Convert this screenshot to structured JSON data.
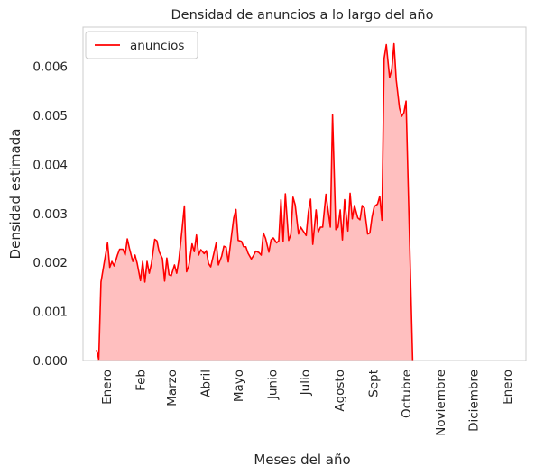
{
  "chart_data": {
    "type": "area",
    "title": "Densidad de anuncios a lo largo del año",
    "xlabel": "Meses del año",
    "ylabel": "Densidad estimada",
    "xlim": [
      0,
      366
    ],
    "ylim": [
      0,
      0.0068
    ],
    "grid": false,
    "legend": {
      "position": "top-left",
      "entries": [
        "anuncios"
      ]
    },
    "month_ticks": [
      {
        "label": "Enero",
        "x": 0
      },
      {
        "label": "Feb",
        "x": 31
      },
      {
        "label": "Marzo",
        "x": 59
      },
      {
        "label": "Abril",
        "x": 90
      },
      {
        "label": "Mayo",
        "x": 120
      },
      {
        "label": "Junio",
        "x": 151
      },
      {
        "label": "Julio",
        "x": 181
      },
      {
        "label": "Agosto",
        "x": 212
      },
      {
        "label": "Sept",
        "x": 243
      },
      {
        "label": "Octubre",
        "x": 273
      },
      {
        "label": "Noviembre",
        "x": 304
      },
      {
        "label": "Diciembre",
        "x": 334
      },
      {
        "label": "Enero",
        "x": 365
      }
    ],
    "y_ticks": [
      {
        "label": "0.000",
        "value": 0.0
      },
      {
        "label": "0.001",
        "value": 0.001
      },
      {
        "label": "0.002",
        "value": 0.002
      },
      {
        "label": "0.003",
        "value": 0.003
      },
      {
        "label": "0.004",
        "value": 0.004
      },
      {
        "label": "0.005",
        "value": 0.005
      },
      {
        "label": "0.006",
        "value": 0.006
      }
    ],
    "series": [
      {
        "name": "anuncios",
        "color": "#ff0000",
        "fill": "#ffbfbf",
        "points": [
          [
            -9,
            0.00022
          ],
          [
            -7,
            3e-05
          ],
          [
            -5,
            0.0016
          ],
          [
            -2,
            0.002
          ],
          [
            1,
            0.0024
          ],
          [
            3,
            0.0019
          ],
          [
            5,
            0.00202
          ],
          [
            7,
            0.00193
          ],
          [
            10,
            0.00215
          ],
          [
            12,
            0.00227
          ],
          [
            15,
            0.00227
          ],
          [
            17,
            0.00215
          ],
          [
            19,
            0.00248
          ],
          [
            21,
            0.00228
          ],
          [
            24,
            0.00202
          ],
          [
            26,
            0.00215
          ],
          [
            28,
            0.00198
          ],
          [
            31,
            0.00163
          ],
          [
            33,
            0.00202
          ],
          [
            35,
            0.0016
          ],
          [
            37,
            0.00202
          ],
          [
            39,
            0.00178
          ],
          [
            41,
            0.00198
          ],
          [
            44,
            0.00247
          ],
          [
            46,
            0.00244
          ],
          [
            48,
            0.00222
          ],
          [
            51,
            0.00208
          ],
          [
            53,
            0.00162
          ],
          [
            55,
            0.00209
          ],
          [
            57,
            0.00175
          ],
          [
            59,
            0.00173
          ],
          [
            62,
            0.00195
          ],
          [
            64,
            0.00178
          ],
          [
            66,
            0.00205
          ],
          [
            69,
            0.0027
          ],
          [
            71,
            0.00315
          ],
          [
            73,
            0.00181
          ],
          [
            75,
            0.00193
          ],
          [
            78,
            0.00238
          ],
          [
            80,
            0.00222
          ],
          [
            82,
            0.00256
          ],
          [
            84,
            0.00215
          ],
          [
            86,
            0.00226
          ],
          [
            89,
            0.00218
          ],
          [
            91,
            0.00224
          ],
          [
            93,
            0.00198
          ],
          [
            95,
            0.00191
          ],
          [
            98,
            0.0022
          ],
          [
            100,
            0.0024
          ],
          [
            102,
            0.00195
          ],
          [
            105,
            0.00213
          ],
          [
            107,
            0.00233
          ],
          [
            109,
            0.00231
          ],
          [
            111,
            0.00201
          ],
          [
            114,
            0.00256
          ],
          [
            116,
            0.00291
          ],
          [
            118,
            0.00308
          ],
          [
            120,
            0.00245
          ],
          [
            123,
            0.00243
          ],
          [
            125,
            0.00232
          ],
          [
            127,
            0.00232
          ],
          [
            129,
            0.00219
          ],
          [
            132,
            0.00207
          ],
          [
            134,
            0.00214
          ],
          [
            136,
            0.00223
          ],
          [
            139,
            0.0022
          ],
          [
            141,
            0.00215
          ],
          [
            143,
            0.0026
          ],
          [
            145,
            0.00249
          ],
          [
            148,
            0.00221
          ],
          [
            150,
            0.00246
          ],
          [
            152,
            0.0025
          ],
          [
            155,
            0.0024
          ],
          [
            157,
            0.00244
          ],
          [
            159,
            0.00328
          ],
          [
            161,
            0.00243
          ],
          [
            163,
            0.0034
          ],
          [
            166,
            0.00245
          ],
          [
            168,
            0.00257
          ],
          [
            170,
            0.00333
          ],
          [
            172,
            0.00317
          ],
          [
            175,
            0.00258
          ],
          [
            177,
            0.00272
          ],
          [
            179,
            0.00265
          ],
          [
            182,
            0.00255
          ],
          [
            184,
            0.00303
          ],
          [
            186,
            0.00329
          ],
          [
            188,
            0.00237
          ],
          [
            191,
            0.00307
          ],
          [
            193,
            0.00262
          ],
          [
            195,
            0.00272
          ],
          [
            197,
            0.00272
          ],
          [
            200,
            0.00339
          ],
          [
            202,
            0.00305
          ],
          [
            204,
            0.00272
          ],
          [
            206,
            0.00501
          ],
          [
            209,
            0.00267
          ],
          [
            211,
            0.00272
          ],
          [
            213,
            0.00307
          ],
          [
            215,
            0.00246
          ],
          [
            217,
            0.00328
          ],
          [
            220,
            0.00264
          ],
          [
            222,
            0.00341
          ],
          [
            224,
            0.00289
          ],
          [
            226,
            0.00316
          ],
          [
            229,
            0.00291
          ],
          [
            231,
            0.00287
          ],
          [
            233,
            0.00316
          ],
          [
            235,
            0.00311
          ],
          [
            238,
            0.00258
          ],
          [
            240,
            0.0026
          ],
          [
            242,
            0.00293
          ],
          [
            244,
            0.00314
          ],
          [
            247,
            0.00319
          ],
          [
            249,
            0.00335
          ],
          [
            251,
            0.00286
          ],
          [
            253,
            0.00616
          ],
          [
            255,
            0.00644
          ],
          [
            258,
            0.00577
          ],
          [
            260,
            0.00594
          ],
          [
            262,
            0.00646
          ],
          [
            264,
            0.00573
          ],
          [
            267,
            0.00515
          ],
          [
            269,
            0.00498
          ],
          [
            271,
            0.00505
          ],
          [
            273,
            0.00529
          ],
          [
            279,
            0.0
          ]
        ]
      }
    ]
  }
}
